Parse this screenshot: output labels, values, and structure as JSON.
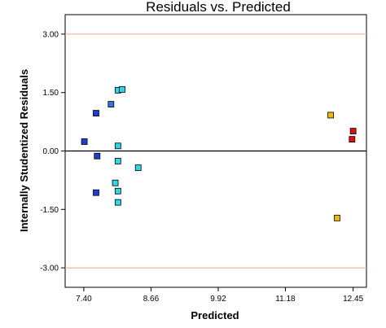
{
  "chart_data": {
    "type": "scatter",
    "title": "Residuals vs. Predicted",
    "xlabel": "Predicted",
    "ylabel": "Internally Studentized Residuals",
    "xlim": [
      7.05,
      12.7
    ],
    "ylim": [
      -3.5,
      3.5
    ],
    "x_ticks": [
      {
        "value": 7.4,
        "label": "7.40"
      },
      {
        "value": 8.66,
        "label": "8.66"
      },
      {
        "value": 9.92,
        "label": "9.92"
      },
      {
        "value": 11.18,
        "label": "11.18"
      },
      {
        "value": 12.45,
        "label": "12.45"
      }
    ],
    "y_ticks": [
      {
        "value": 3.0,
        "label": "3.00"
      },
      {
        "value": 1.5,
        "label": "1.50"
      },
      {
        "value": 0.0,
        "label": "0.00"
      },
      {
        "value": -1.5,
        "label": "-1.50"
      },
      {
        "value": -3.0,
        "label": "-3.00"
      }
    ],
    "reference_lines": [
      {
        "y": 3.0,
        "color": "#f2a48c"
      },
      {
        "y": -3.0,
        "color": "#f2a48c"
      },
      {
        "y": 0.0,
        "color": "#000000"
      }
    ],
    "grid": false,
    "legend": "none",
    "points": [
      {
        "x": 7.41,
        "y": 0.24,
        "color": "#1f3fd0"
      },
      {
        "x": 7.63,
        "y": 0.97,
        "color": "#1f3fd0"
      },
      {
        "x": 7.65,
        "y": -0.13,
        "color": "#1f3fd0"
      },
      {
        "x": 7.63,
        "y": -1.07,
        "color": "#1f3fd0"
      },
      {
        "x": 7.91,
        "y": 1.2,
        "color": "#2f78d8"
      },
      {
        "x": 8.04,
        "y": 1.56,
        "color": "#2fd6e8"
      },
      {
        "x": 8.12,
        "y": 1.58,
        "color": "#2fd6e8"
      },
      {
        "x": 8.04,
        "y": 0.13,
        "color": "#2fd6e8"
      },
      {
        "x": 8.04,
        "y": -0.26,
        "color": "#2fd6e8"
      },
      {
        "x": 7.99,
        "y": -0.82,
        "color": "#2fd6e8"
      },
      {
        "x": 8.04,
        "y": -1.03,
        "color": "#2fd6e8"
      },
      {
        "x": 8.04,
        "y": -1.32,
        "color": "#2fd6e8"
      },
      {
        "x": 8.42,
        "y": -0.43,
        "color": "#2fd6e8"
      },
      {
        "x": 12.03,
        "y": 0.92,
        "color": "#f0b800"
      },
      {
        "x": 12.15,
        "y": -1.72,
        "color": "#f0b800"
      },
      {
        "x": 12.45,
        "y": 0.51,
        "color": "#dd1010"
      },
      {
        "x": 12.43,
        "y": 0.3,
        "color": "#dd1010"
      }
    ]
  }
}
